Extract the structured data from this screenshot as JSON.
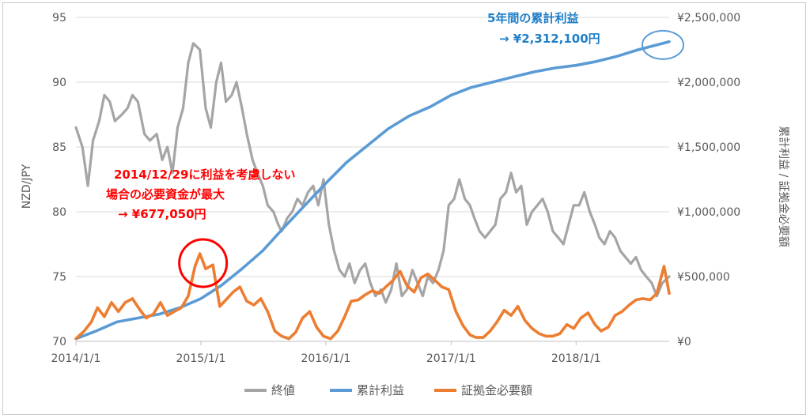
{
  "chart_data": {
    "type": "line",
    "xlabel": "",
    "ylabel_left": "NZD/JPY",
    "ylabel_right": "累計利益 / 証拠金必要額",
    "ylim_left": [
      70,
      95
    ],
    "ylim_right": [
      0,
      2500000
    ],
    "x_range": [
      "2014-01-01",
      "2018-09-30"
    ],
    "x_ticks": [
      "2014/1/1",
      "2015/1/1",
      "2016/1/1",
      "2017/1/1",
      "2018/1/1"
    ],
    "y_left_ticks": [
      "70",
      "75",
      "80",
      "85",
      "90",
      "95"
    ],
    "y_right_ticks": [
      "¥0",
      "¥500,000",
      "¥1,000,000",
      "¥1,500,000",
      "¥2,000,000",
      "¥2,500,000"
    ],
    "grid": true,
    "legend_position": "bottom",
    "series": [
      {
        "name": "終値",
        "axis": "left",
        "color": "#a5a5a5",
        "x": [
          "2014-01-01",
          "2014-01-20",
          "2014-02-05",
          "2014-02-20",
          "2014-03-10",
          "2014-03-25",
          "2014-04-10",
          "2014-04-25",
          "2014-05-15",
          "2014-06-01",
          "2014-06-15",
          "2014-07-01",
          "2014-07-20",
          "2014-08-05",
          "2014-08-25",
          "2014-09-10",
          "2014-09-25",
          "2014-10-10",
          "2014-10-25",
          "2014-11-10",
          "2014-11-25",
          "2014-12-10",
          "2014-12-29",
          "2015-01-15",
          "2015-01-30",
          "2015-02-15",
          "2015-03-01",
          "2015-03-15",
          "2015-04-01",
          "2015-04-15",
          "2015-05-01",
          "2015-05-15",
          "2015-06-01",
          "2015-06-15",
          "2015-07-01",
          "2015-07-15",
          "2015-08-01",
          "2015-08-15",
          "2015-08-25",
          "2015-09-10",
          "2015-09-25",
          "2015-10-10",
          "2015-10-25",
          "2015-11-10",
          "2015-11-25",
          "2015-12-10",
          "2015-12-25",
          "2016-01-10",
          "2016-01-25",
          "2016-02-10",
          "2016-02-25",
          "2016-03-10",
          "2016-03-25",
          "2016-04-10",
          "2016-04-25",
          "2016-05-10",
          "2016-05-25",
          "2016-06-10",
          "2016-06-24",
          "2016-07-10",
          "2016-07-25",
          "2016-08-10",
          "2016-08-25",
          "2016-09-10",
          "2016-09-25",
          "2016-10-10",
          "2016-10-25",
          "2016-11-09",
          "2016-11-25",
          "2016-12-10",
          "2016-12-25",
          "2017-01-10",
          "2017-01-25",
          "2017-02-10",
          "2017-02-25",
          "2017-03-10",
          "2017-03-25",
          "2017-04-10",
          "2017-04-25",
          "2017-05-10",
          "2017-05-25",
          "2017-06-10",
          "2017-06-25",
          "2017-07-10",
          "2017-07-25",
          "2017-08-10",
          "2017-08-25",
          "2017-09-10",
          "2017-09-25",
          "2017-10-10",
          "2017-10-25",
          "2017-11-10",
          "2017-11-25",
          "2017-12-10",
          "2017-12-25",
          "2018-01-10",
          "2018-01-25",
          "2018-02-10",
          "2018-02-25",
          "2018-03-10",
          "2018-03-25",
          "2018-04-10",
          "2018-04-25",
          "2018-05-10",
          "2018-05-25",
          "2018-06-10",
          "2018-06-25",
          "2018-07-10",
          "2018-07-25",
          "2018-08-10",
          "2018-08-25",
          "2018-09-10",
          "2018-09-30"
        ],
        "values": [
          86.5,
          85.0,
          82.0,
          85.5,
          87.0,
          89.0,
          88.5,
          87.0,
          87.5,
          88.0,
          89.0,
          88.5,
          86.0,
          85.5,
          86.0,
          84.0,
          85.0,
          83.0,
          86.5,
          88.0,
          91.5,
          93.0,
          92.5,
          88.0,
          86.5,
          90.0,
          91.5,
          88.5,
          89.0,
          90.0,
          88.0,
          86.0,
          84.0,
          83.0,
          82.0,
          80.5,
          80.0,
          79.0,
          78.5,
          79.5,
          80.0,
          81.0,
          80.5,
          81.5,
          82.0,
          80.5,
          82.5,
          79.0,
          77.0,
          75.5,
          75.0,
          76.0,
          74.5,
          75.5,
          76.0,
          74.5,
          73.5,
          74.0,
          73.0,
          74.0,
          76.0,
          73.5,
          74.0,
          75.5,
          74.5,
          73.5,
          75.0,
          74.5,
          75.5,
          77.0,
          80.5,
          81.0,
          82.5,
          81.0,
          80.5,
          79.5,
          78.5,
          78.0,
          78.5,
          79.0,
          81.0,
          81.5,
          83.0,
          81.5,
          82.0,
          79.0,
          80.0,
          80.5,
          81.0,
          80.0,
          78.5,
          78.0,
          77.5,
          79.0,
          80.5,
          80.5,
          81.5,
          80.0,
          79.0,
          78.0,
          77.5,
          78.5,
          78.0,
          77.0,
          76.5,
          76.0,
          76.5,
          75.5,
          75.0,
          74.5,
          73.5,
          74.5,
          75.0
        ]
      },
      {
        "name": "累計利益",
        "axis": "right",
        "color": "#5b9bd5",
        "x": [
          "2014-01-01",
          "2014-03-01",
          "2014-05-01",
          "2014-07-01",
          "2014-09-01",
          "2014-11-01",
          "2015-01-01",
          "2015-03-01",
          "2015-05-01",
          "2015-07-01",
          "2015-09-01",
          "2015-11-01",
          "2016-01-01",
          "2016-03-01",
          "2016-05-01",
          "2016-07-01",
          "2016-09-01",
          "2016-11-01",
          "2017-01-01",
          "2017-03-01",
          "2017-05-01",
          "2017-07-01",
          "2017-09-01",
          "2017-11-01",
          "2018-01-01",
          "2018-03-01",
          "2018-05-01",
          "2018-07-01",
          "2018-09-30"
        ],
        "values": [
          20000,
          80000,
          150000,
          180000,
          210000,
          260000,
          330000,
          430000,
          560000,
          700000,
          880000,
          1050000,
          1220000,
          1380000,
          1510000,
          1640000,
          1740000,
          1810000,
          1900000,
          1960000,
          2000000,
          2040000,
          2080000,
          2110000,
          2130000,
          2160000,
          2200000,
          2250000,
          2312100
        ]
      },
      {
        "name": "証拠金必要額",
        "axis": "right",
        "color": "#ed7d31",
        "x": [
          "2014-01-01",
          "2014-01-25",
          "2014-02-15",
          "2014-03-05",
          "2014-03-25",
          "2014-04-15",
          "2014-05-05",
          "2014-05-25",
          "2014-06-15",
          "2014-07-05",
          "2014-07-25",
          "2014-08-15",
          "2014-09-05",
          "2014-09-25",
          "2014-10-15",
          "2014-11-05",
          "2014-11-25",
          "2014-12-15",
          "2014-12-29",
          "2015-01-15",
          "2015-02-05",
          "2015-02-25",
          "2015-03-15",
          "2015-04-05",
          "2015-04-25",
          "2015-05-15",
          "2015-06-05",
          "2015-06-25",
          "2015-07-15",
          "2015-08-05",
          "2015-08-25",
          "2015-09-15",
          "2015-10-05",
          "2015-10-25",
          "2015-11-15",
          "2015-12-05",
          "2015-12-25",
          "2016-01-15",
          "2016-02-05",
          "2016-02-25",
          "2016-03-15",
          "2016-04-05",
          "2016-04-25",
          "2016-05-15",
          "2016-06-05",
          "2016-06-24",
          "2016-07-15",
          "2016-08-05",
          "2016-08-25",
          "2016-09-15",
          "2016-10-05",
          "2016-10-25",
          "2016-11-15",
          "2016-12-05",
          "2016-12-25",
          "2017-01-15",
          "2017-02-05",
          "2017-02-25",
          "2017-03-15",
          "2017-04-05",
          "2017-04-25",
          "2017-05-15",
          "2017-06-05",
          "2017-06-25",
          "2017-07-15",
          "2017-08-05",
          "2017-08-25",
          "2017-09-15",
          "2017-10-05",
          "2017-10-25",
          "2017-11-15",
          "2017-12-05",
          "2017-12-25",
          "2018-01-15",
          "2018-02-05",
          "2018-02-25",
          "2018-03-15",
          "2018-04-05",
          "2018-04-25",
          "2018-05-15",
          "2018-06-05",
          "2018-06-25",
          "2018-07-15",
          "2018-08-05",
          "2018-08-25",
          "2018-09-15",
          "2018-09-30"
        ],
        "values": [
          20000,
          80000,
          150000,
          260000,
          190000,
          300000,
          230000,
          300000,
          330000,
          250000,
          180000,
          210000,
          300000,
          200000,
          230000,
          260000,
          350000,
          580000,
          677050,
          560000,
          590000,
          270000,
          320000,
          380000,
          420000,
          310000,
          280000,
          330000,
          230000,
          80000,
          40000,
          20000,
          70000,
          180000,
          230000,
          110000,
          40000,
          20000,
          80000,
          190000,
          310000,
          320000,
          360000,
          390000,
          370000,
          420000,
          470000,
          540000,
          430000,
          380000,
          490000,
          520000,
          470000,
          420000,
          400000,
          230000,
          120000,
          50000,
          30000,
          30000,
          80000,
          150000,
          240000,
          200000,
          270000,
          160000,
          100000,
          60000,
          40000,
          40000,
          60000,
          130000,
          100000,
          180000,
          220000,
          130000,
          80000,
          110000,
          200000,
          230000,
          280000,
          320000,
          330000,
          320000,
          370000,
          580000,
          370000
        ]
      }
    ],
    "annotations": [
      {
        "lines": [
          "2014/12/29に利益を考慮しない",
          "場合の必要資金が最大",
          "→ ¥677,050円"
        ],
        "color": "#ff0000",
        "target_date": "2014-12-29",
        "target_value": 677050
      },
      {
        "lines": [
          "5年間の累計利益",
          "→ ¥2,312,100円"
        ],
        "color": "#1f7fc8",
        "target_date": "2018-09-30",
        "target_value": 2312100
      }
    ]
  }
}
